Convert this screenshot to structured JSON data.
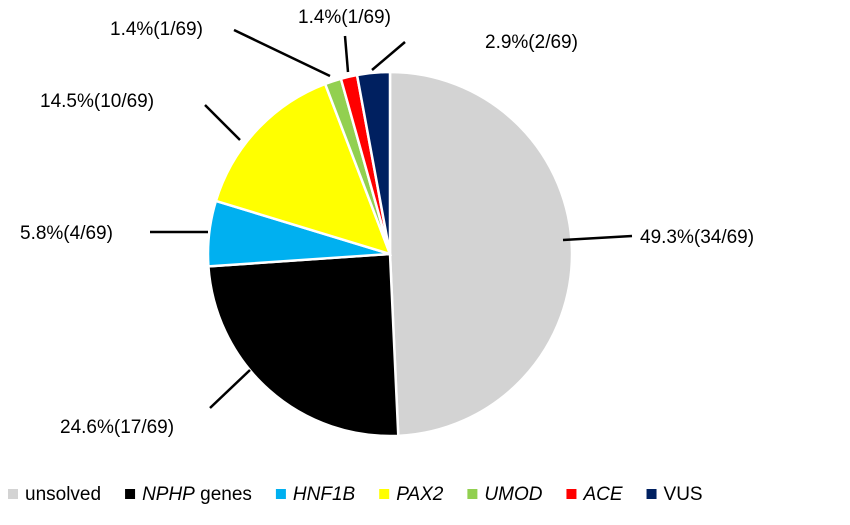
{
  "chart_data": {
    "type": "pie",
    "title": "",
    "start": "12 o'clock",
    "direction": "clockwise",
    "slices": [
      {
        "name": "unsolved",
        "value": 34,
        "total": 69,
        "label": "49.3%(34/69)",
        "color": "#d3d3d3"
      },
      {
        "name": "NPHP genes",
        "value": 17,
        "total": 69,
        "label": "24.6%(17/69)",
        "color": "#000000"
      },
      {
        "name": "HNF1B",
        "value": 4,
        "total": 69,
        "label": "5.8%(4/69)",
        "color": "#00b0f0"
      },
      {
        "name": "PAX2",
        "value": 10,
        "total": 69,
        "label": "14.5%(10/69)",
        "color": "#ffff00"
      },
      {
        "name": "UMOD",
        "value": 1,
        "total": 69,
        "label": "1.4%(1/69)",
        "color": "#92d050"
      },
      {
        "name": "ACE",
        "value": 1,
        "total": 69,
        "label": "1.4%(1/69)",
        "color": "#ff0000"
      },
      {
        "name": "VUS",
        "value": 2,
        "total": 69,
        "label": "2.9%(2/69)",
        "color": "#002060"
      }
    ],
    "legend": {
      "position": "bottom",
      "items": [
        {
          "text": "unsolved",
          "italic": false,
          "suffix": ""
        },
        {
          "text": "NPHP",
          "italic": true,
          "suffix": " genes"
        },
        {
          "text": "HNF1B",
          "italic": true,
          "suffix": ""
        },
        {
          "text": "PAX2",
          "italic": true,
          "suffix": ""
        },
        {
          "text": "UMOD",
          "italic": true,
          "suffix": ""
        },
        {
          "text": "ACE",
          "italic": true,
          "suffix": ""
        },
        {
          "text": "VUS",
          "italic": false,
          "suffix": ""
        }
      ]
    }
  }
}
